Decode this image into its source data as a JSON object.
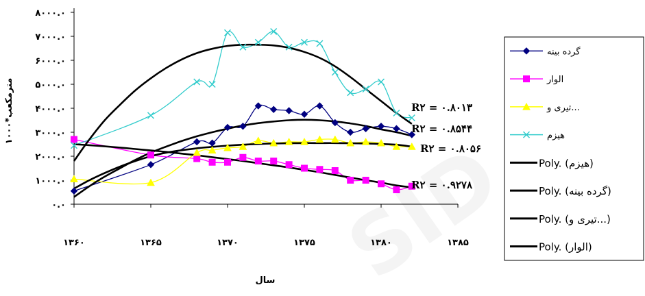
{
  "chart_data": {
    "type": "line",
    "xlabel": "سال",
    "ylabel": "مترمکعب*۱۰۰۰",
    "xlim": [
      1360,
      1385
    ],
    "ylim": [
      0,
      800000
    ],
    "x_ticks": [
      1360,
      1365,
      1370,
      1375,
      1380,
      1385
    ],
    "x_tick_labels": [
      "۱۳۶۰",
      "۱۳۶۵",
      "۱۳۷۰",
      "۱۳۷۵",
      "۱۳۸۰",
      "۱۳۸۵"
    ],
    "y_ticks": [
      0,
      100000,
      200000,
      300000,
      400000,
      500000,
      600000,
      700000,
      800000
    ],
    "y_tick_labels": [
      "۰.۰",
      "۱۰۰۰.۰",
      "۲۰۰۰.۰",
      "۳۰۰۰.۰",
      "۴۰۰۰.۰",
      "۵۰۰۰.۰",
      "۶۰۰۰.۰",
      "۷۰۰۰.۰",
      "۸۰۰۰.۰"
    ],
    "grid": false,
    "legend_position": "right",
    "series": [
      {
        "name": "گرده بینه",
        "color": "#000080",
        "marker": "diamond",
        "x": [
          1360,
          1365,
          1368,
          1369,
          1370,
          1371,
          1372,
          1373,
          1374,
          1375,
          1376,
          1377,
          1378,
          1379,
          1380,
          1381,
          1382
        ],
        "y": [
          55000,
          165000,
          260000,
          255000,
          320000,
          325000,
          410000,
          395000,
          390000,
          375000,
          410000,
          340000,
          300000,
          315000,
          325000,
          315000,
          290000
        ]
      },
      {
        "name": "الوار",
        "color": "#ff00ff",
        "marker": "square",
        "x": [
          1360,
          1365,
          1368,
          1369,
          1370,
          1371,
          1372,
          1373,
          1374,
          1375,
          1376,
          1377,
          1378,
          1379,
          1380,
          1381,
          1382
        ],
        "y": [
          270000,
          205000,
          190000,
          175000,
          175000,
          195000,
          180000,
          180000,
          165000,
          150000,
          145000,
          140000,
          100000,
          100000,
          85000,
          60000,
          75000
        ]
      },
      {
        "name": "تیری و...",
        "color": "#ffff00",
        "marker": "triangle",
        "x": [
          1360,
          1365,
          1368,
          1369,
          1370,
          1371,
          1372,
          1373,
          1374,
          1375,
          1376,
          1377,
          1378,
          1379,
          1380,
          1381,
          1382
        ],
        "y": [
          105000,
          90000,
          215000,
          225000,
          235000,
          240000,
          265000,
          255000,
          260000,
          260000,
          270000,
          270000,
          255000,
          260000,
          255000,
          240000,
          240000
        ]
      },
      {
        "name": "هیزم",
        "color": "#33cccc",
        "marker": "x",
        "x": [
          1360,
          1365,
          1368,
          1369,
          1370,
          1371,
          1372,
          1373,
          1374,
          1375,
          1376,
          1377,
          1378,
          1379,
          1380,
          1381,
          1382
        ],
        "y": [
          245000,
          370000,
          510000,
          500000,
          715000,
          655000,
          675000,
          720000,
          655000,
          675000,
          670000,
          550000,
          465000,
          480000,
          510000,
          380000,
          360000
        ]
      }
    ],
    "trendlines": [
      {
        "name": "Poly. (هیزم)",
        "of": "هیزم",
        "type": "polynomial",
        "color": "#000000",
        "x": [
          1360,
          1361,
          1362,
          1363,
          1364,
          1365,
          1366,
          1367,
          1368,
          1369,
          1370,
          1371,
          1372,
          1373,
          1374,
          1375,
          1376,
          1377,
          1378,
          1379,
          1380,
          1381,
          1382
        ],
        "y": [
          180000,
          270000,
          350000,
          415000,
          475000,
          525000,
          568000,
          603000,
          630000,
          648000,
          660000,
          665000,
          665000,
          662000,
          652000,
          635000,
          610000,
          575000,
          530000,
          480000,
          430000,
          380000,
          335000
        ]
      },
      {
        "name": "Poly. (گرده بینه)",
        "of": "گرده بینه",
        "type": "polynomial",
        "color": "#000000",
        "x": [
          1360,
          1361,
          1362,
          1363,
          1364,
          1365,
          1366,
          1367,
          1368,
          1369,
          1370,
          1371,
          1372,
          1373,
          1374,
          1375,
          1376,
          1377,
          1378,
          1379,
          1380,
          1381,
          1382
        ],
        "y": [
          30000,
          75000,
          115000,
          150000,
          185000,
          215000,
          240000,
          263000,
          283000,
          300000,
          315000,
          328000,
          338000,
          345000,
          350000,
          352000,
          350000,
          345000,
          337000,
          326000,
          312000,
          300000,
          285000
        ]
      },
      {
        "name": "Poly. (تیری و...)",
        "of": "تیری و...",
        "type": "polynomial",
        "color": "#000000",
        "x": [
          1360,
          1361,
          1362,
          1363,
          1364,
          1365,
          1366,
          1367,
          1368,
          1369,
          1370,
          1371,
          1372,
          1373,
          1374,
          1375,
          1376,
          1377,
          1378,
          1379,
          1380,
          1381,
          1382
        ],
        "y": [
          65000,
          100000,
          130000,
          157000,
          180000,
          200000,
          215000,
          225000,
          233000,
          239000,
          244000,
          248000,
          251000,
          253000,
          254000,
          255000,
          255000,
          255000,
          254000,
          253000,
          251000,
          248000,
          240000
        ]
      },
      {
        "name": "Poly. (الوار)",
        "of": "الوار",
        "type": "polynomial",
        "color": "#000000",
        "x": [
          1360,
          1361,
          1362,
          1363,
          1364,
          1365,
          1366,
          1367,
          1368,
          1369,
          1370,
          1371,
          1372,
          1373,
          1374,
          1375,
          1376,
          1377,
          1378,
          1379,
          1380,
          1381,
          1382
        ],
        "y": [
          250000,
          246000,
          241000,
          236000,
          230000,
          224000,
          218000,
          211000,
          204000,
          196000,
          188000,
          180000,
          171000,
          162000,
          153000,
          143000,
          133000,
          122000,
          111000,
          100000,
          90000,
          78000,
          70000
        ]
      }
    ],
    "annotations": [
      {
        "text": "R۲ = ۰.۸۰۱۳",
        "series": "هیزم"
      },
      {
        "text": "R۲ = ۰.۸۵۴۴",
        "series": "گرده بینه"
      },
      {
        "text": "R۲ = ۰.۸۰۵۶",
        "series": "تیری و..."
      },
      {
        "text": "R۲ = ۰.۹۲۷۸",
        "series": "الوار"
      }
    ],
    "legend": [
      {
        "label": "گرده بینه",
        "type": "series",
        "color": "#000080",
        "marker": "diamond"
      },
      {
        "label": "الوار",
        "type": "series",
        "color": "#ff00ff",
        "marker": "square"
      },
      {
        "label": "تیری و...",
        "type": "series",
        "color": "#ffff00",
        "marker": "triangle"
      },
      {
        "label": "هیزم",
        "type": "series",
        "color": "#33cccc",
        "marker": "x"
      },
      {
        "label": "Poly. (هیزم)",
        "type": "trend",
        "color": "#000000"
      },
      {
        "label": "Poly. (گرده بینه)",
        "type": "trend",
        "color": "#000000"
      },
      {
        "label": "Poly. (تیری و...)",
        "type": "trend",
        "color": "#000000"
      },
      {
        "label": "Poly. (الوار)",
        "type": "trend",
        "color": "#000000"
      }
    ]
  }
}
